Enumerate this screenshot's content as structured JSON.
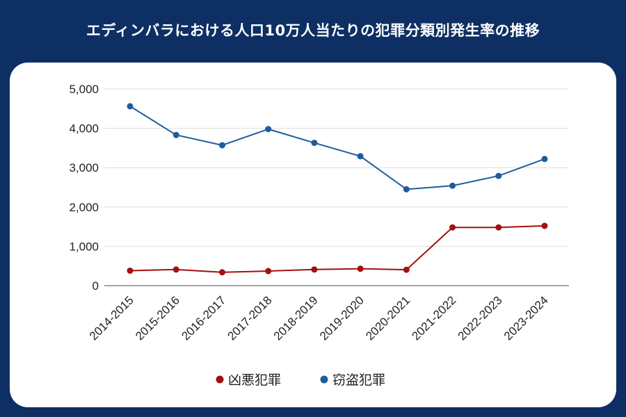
{
  "title": "エディンバラにおける人口10万人当たりの犯罪分類別発生率の推移",
  "chart_data": {
    "type": "line",
    "title": "エディンバラにおける人口10万人当たりの犯罪分類別発生率の推移",
    "xlabel": "",
    "ylabel": "",
    "categories": [
      "2014-2015",
      "2015-2016",
      "2016-2017",
      "2017-2018",
      "2018-2019",
      "2019-2020",
      "2020-2021",
      "2021-2022",
      "2022-2023",
      "2023-2024"
    ],
    "ylim": [
      0,
      5000
    ],
    "yticks": [
      "0",
      "1,000",
      "2,000",
      "3,000",
      "4,000",
      "5,000"
    ],
    "ytick_values": [
      0,
      1000,
      2000,
      3000,
      4000,
      5000
    ],
    "grid": true,
    "legend_position": "bottom",
    "series": [
      {
        "name": "凶悪犯罪",
        "color": "#a50f0f",
        "values": [
          380,
          410,
          340,
          370,
          410,
          430,
          405,
          1480,
          1480,
          1520
        ]
      },
      {
        "name": "窃盗犯罪",
        "color": "#1d5d9b",
        "values": [
          4560,
          3830,
          3570,
          3980,
          3630,
          3290,
          2450,
          2540,
          2790,
          3220
        ]
      }
    ]
  }
}
